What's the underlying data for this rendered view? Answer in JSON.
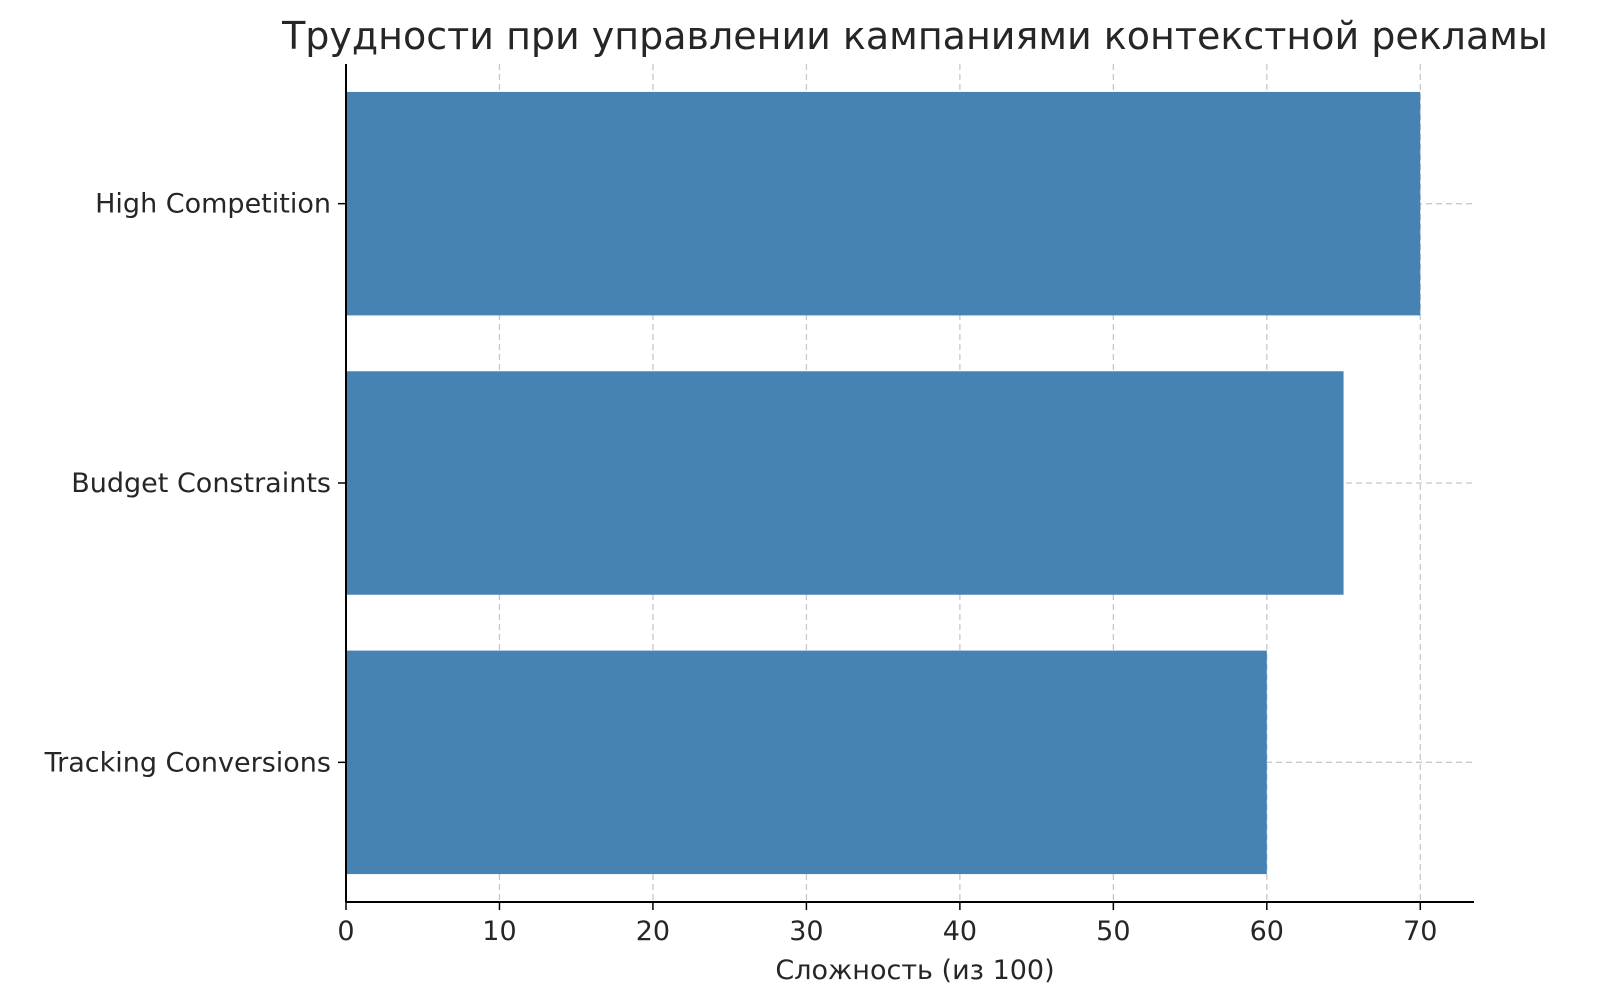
{
  "chart_data": {
    "type": "bar",
    "orientation": "horizontal",
    "title": "Трудности при управлении кампаниями контекстной рекламы",
    "xlabel": "Сложность (из 100)",
    "ylabel": "",
    "categories": [
      "High Competition",
      "Budget Constraints",
      "Tracking Conversions"
    ],
    "values": [
      70,
      65,
      60
    ],
    "xlim": [
      0,
      73.5
    ],
    "xticks": [
      "0",
      "10",
      "20",
      "30",
      "40",
      "50",
      "60",
      "70"
    ],
    "grid": true,
    "bar_color": "#4682b4"
  }
}
